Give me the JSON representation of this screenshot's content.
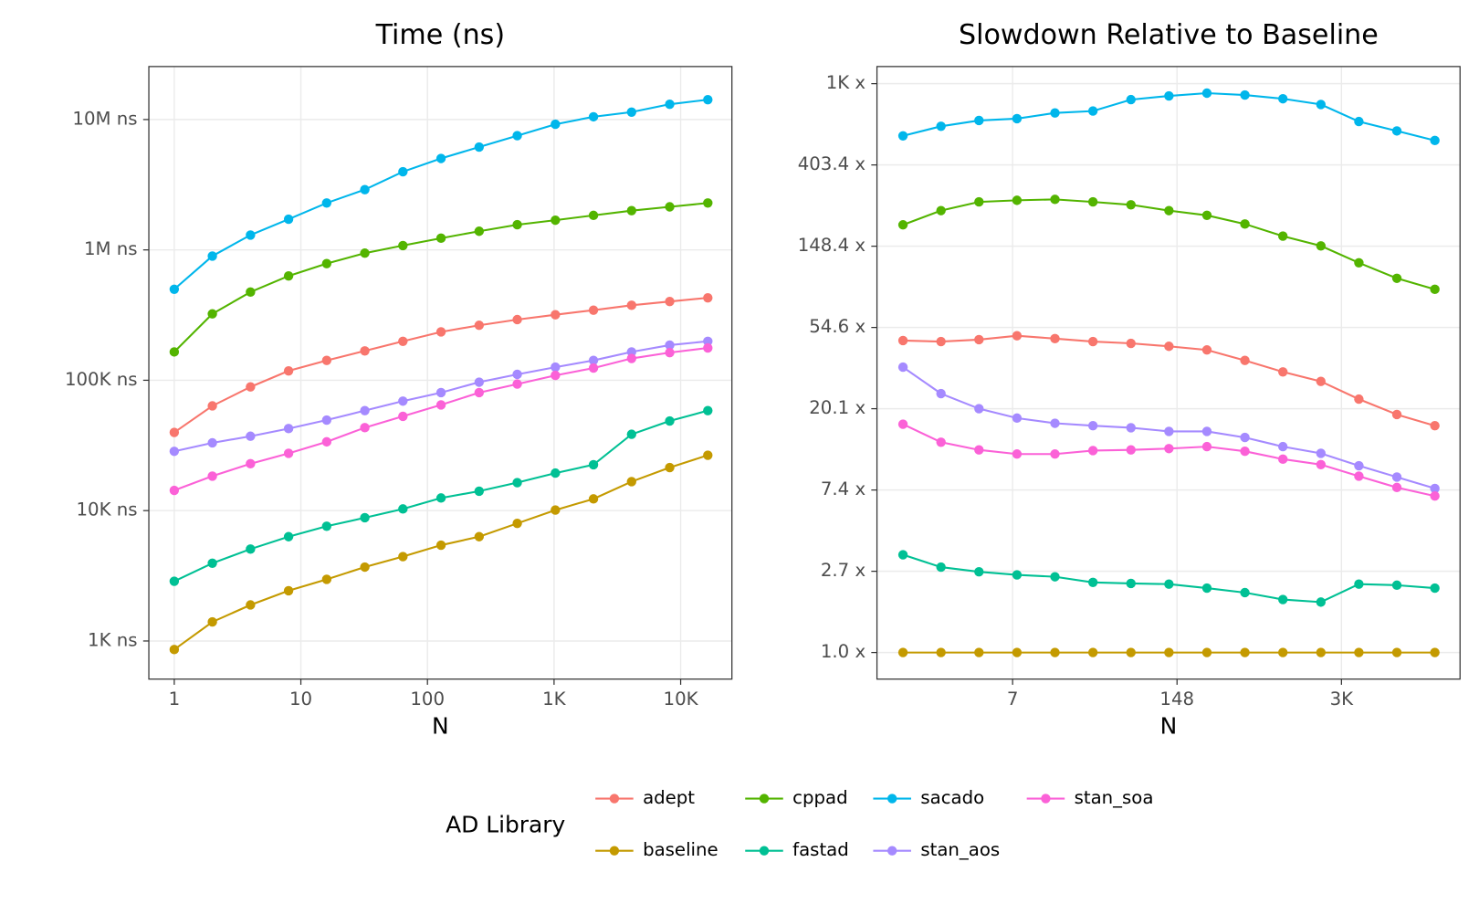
{
  "chart_data": [
    {
      "type": "line",
      "title": "Time (ns)",
      "x_label": "N",
      "xlog": true,
      "ylog": true,
      "grid": true,
      "x": [
        1,
        2,
        4,
        8,
        16,
        32,
        64,
        128,
        256,
        512,
        1024,
        2048,
        4096,
        8192,
        16384
      ],
      "xlim": [
        0.63,
        25400
      ],
      "ylim": [
        510,
        25500000
      ],
      "xticks": [
        1,
        10,
        100,
        {
          "value": 1000,
          "label": "1K"
        },
        {
          "value": 10000,
          "label": "10K"
        }
      ],
      "yticks": [
        {
          "value": 1000,
          "label": "1K ns"
        },
        {
          "value": 10000,
          "label": "10K ns"
        },
        {
          "value": 100000,
          "label": "100K ns"
        },
        {
          "value": 1000000,
          "label": "1M ns"
        },
        {
          "value": 10000000,
          "label": "10M ns"
        }
      ],
      "series": [
        {
          "name": "adept",
          "color": "#F8766D",
          "values": [
            39800,
            63600,
            88900,
            118000,
            142000,
            168000,
            199000,
            235000,
            264000,
            292000,
            318000,
            345000,
            376000,
            402000,
            429000
          ]
        },
        {
          "name": "baseline",
          "color": "#C49A00",
          "values": [
            860,
            1400,
            1890,
            2430,
            2970,
            3690,
            4440,
            5430,
            6310,
            7980,
            10100,
            12300,
            16700,
            21400,
            26600
          ]
        },
        {
          "name": "cppad",
          "color": "#53B400",
          "values": [
            165000,
            323000,
            475000,
            631000,
            785000,
            944000,
            1080000,
            1230000,
            1390000,
            1560000,
            1690000,
            1840000,
            2000000,
            2140000,
            2290000
          ]
        },
        {
          "name": "fastad",
          "color": "#00C094",
          "values": [
            2870,
            3950,
            5070,
            6310,
            7590,
            8820,
            10300,
            12500,
            14100,
            16400,
            19400,
            22500,
            38500,
            48700,
            58500
          ]
        },
        {
          "name": "sacado",
          "color": "#00B6EB",
          "values": [
            499000,
            897000,
            1300000,
            1720000,
            2290000,
            2900000,
            3980000,
            5030000,
            6150000,
            7520000,
            9200000,
            10500000,
            11400000,
            13100000,
            14200000
          ]
        },
        {
          "name": "stan_aos",
          "color": "#A58AFF",
          "values": [
            28500,
            33100,
            37200,
            42600,
            49500,
            58500,
            69200,
            80400,
            96700,
            111000,
            126000,
            142000,
            165000,
            186000,
            199000
          ]
        },
        {
          "name": "stan_soa",
          "color": "#FB61D7",
          "values": [
            14300,
            18400,
            22900,
            27500,
            33700,
            43300,
            52900,
            64700,
            80400,
            93500,
            109000,
            124000,
            147000,
            163000,
            177000
          ]
        }
      ]
    },
    {
      "type": "line",
      "title": "Slowdown Relative to Baseline",
      "x_label": "N",
      "xlog": true,
      "ylog": true,
      "grid": true,
      "x": [
        1,
        2,
        4,
        8,
        16,
        32,
        64,
        128,
        256,
        512,
        1024,
        2048,
        4096,
        8192,
        16384
      ],
      "xlim": [
        0.622,
        25940
      ],
      "ylim": [
        0.721,
        1354
      ],
      "xticks": [
        {
          "value": 7.389,
          "label": "7"
        },
        {
          "value": 148.41,
          "label": "148"
        },
        {
          "value": 2980.96,
          "label": "3K"
        }
      ],
      "yticks": [
        {
          "value": 1,
          "label": "1.0 x"
        },
        {
          "value": 2.718,
          "label": "2.7 x"
        },
        {
          "value": 7.389,
          "label": "7.4 x"
        },
        {
          "value": 20.09,
          "label": "20.1 x"
        },
        {
          "value": 54.6,
          "label": "54.6 x"
        },
        {
          "value": 148.41,
          "label": "148.4 x"
        },
        {
          "value": 403.43,
          "label": "403.4 x"
        },
        {
          "value": 1096.63,
          "label": "1K x"
        }
      ],
      "series": [
        {
          "color": "#F8766D",
          "values": [
            46.5,
            45.9,
            47.0,
            49.3,
            47.6,
            45.9,
            44.9,
            43.3,
            41.4,
            36.4,
            31.6,
            28.1,
            22.6,
            18.7,
            16.3
          ]
        },
        {
          "color": "#C49A00",
          "values": [
            1,
            1,
            1,
            1,
            1,
            1,
            1,
            1,
            1,
            1,
            1,
            1,
            1,
            1,
            1
          ]
        },
        {
          "color": "#53B400",
          "values": [
            193,
            230,
            256,
            261,
            264,
            256,
            247,
            230,
            217,
            195,
            168,
            149,
            121,
            100,
            87.3
          ]
        },
        {
          "color": "#00C094",
          "values": [
            3.33,
            2.86,
            2.7,
            2.6,
            2.54,
            2.37,
            2.34,
            2.32,
            2.21,
            2.09,
            1.92,
            1.86,
            2.32,
            2.29,
            2.21
          ]
        },
        {
          "color": "#00B6EB",
          "values": [
            577,
            649,
            697,
            713,
            765,
            783,
            901,
            943,
            976,
            954,
            911,
            849,
            688,
            613,
            545
          ]
        },
        {
          "color": "#A58AFF",
          "values": [
            33.5,
            24.2,
            20.1,
            17.9,
            16.8,
            16.3,
            15.9,
            15.2,
            15.2,
            14.1,
            12.6,
            11.6,
            9.96,
            8.66,
            7.53
          ]
        },
        {
          "color": "#FB61D7",
          "values": [
            16.6,
            13.3,
            12.1,
            11.5,
            11.5,
            12.0,
            12.1,
            12.3,
            12.6,
            11.9,
            10.8,
            10.1,
            8.76,
            7.62,
            6.86
          ]
        }
      ]
    }
  ],
  "legend": {
    "title": "AD Library",
    "position": "bottom"
  }
}
